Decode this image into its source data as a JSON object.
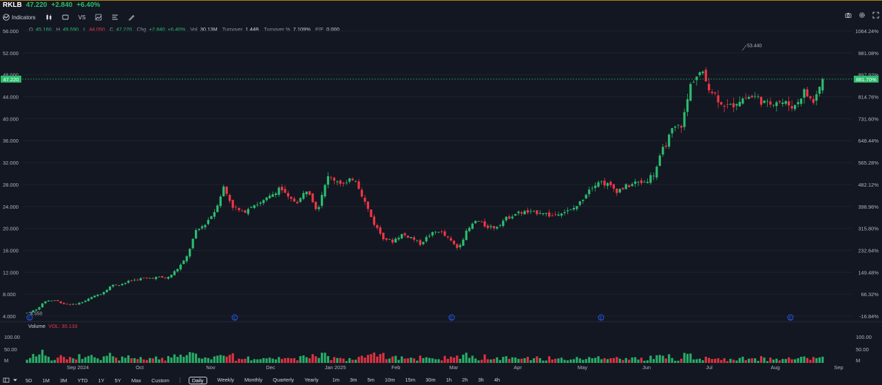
{
  "header": {
    "symbol": "RKLB",
    "price": "47.220",
    "change": "+2.840",
    "change_pct": "+6.40%"
  },
  "toolbar": {
    "indicators_label": "Indicators",
    "compare_label": "VS",
    "left_icons": [
      "candles-icon",
      "rectangle-icon",
      "compare-icon",
      "chart-type-icon",
      "list-icon",
      "pen-icon"
    ],
    "right_icons": [
      "camera-icon",
      "settings-icon",
      "fullscreen-icon"
    ]
  },
  "ohlc": {
    "o_label": "O",
    "o_value": "45.160",
    "h_label": "H",
    "h_value": "49.590",
    "l_label": "L",
    "l_value": "44.050",
    "c_label": "C",
    "c_value": "47.220",
    "chg_label": "Chg",
    "chg_value": "+2.840",
    "chg_pct": "+6.40%",
    "vol_label": "Vol",
    "vol_value": "30.13M",
    "turnover_label": "Turnover",
    "turnover_value": "1.44B",
    "turnover_pct_label": "Turnover %",
    "turnover_pct_value": "7.109%",
    "pe_label": "P/E",
    "pe_value": "0.000"
  },
  "volume_panel": {
    "title": "Volume",
    "vol_text": "VOL: 30.133",
    "left_ticks": [
      "100.00",
      "50.00",
      "M"
    ],
    "right_ticks": [
      "100.00",
      "50.00",
      "M"
    ]
  },
  "timeframes": {
    "ranges": [
      "5D",
      "1M",
      "3M",
      "YTD",
      "1Y",
      "5Y",
      "Max",
      "Custom"
    ],
    "intervals": [
      "Daily",
      "Weekly",
      "Monthly",
      "Quarterly",
      "Yearly",
      "1m",
      "3m",
      "5m",
      "10m",
      "15m",
      "30m",
      "1h",
      "2h",
      "3h",
      "4h"
    ],
    "active": "Daily"
  },
  "colors": {
    "background": "#131722",
    "up": "#2bbd6e",
    "down": "#f23645",
    "grid": "#1e222d",
    "earnings_badge": "#2962ff"
  },
  "chart_data": {
    "type": "candlestick",
    "symbol": "RKLB",
    "y_ticks_left": [
      "56.000",
      "52.000",
      "48.000",
      "44.000",
      "40.000",
      "36.000",
      "32.000",
      "28.000",
      "24.000",
      "20.000",
      "16.000",
      "12.000",
      "8.000",
      "4.000"
    ],
    "y_ticks_right": [
      "1064.24%",
      "981.08%",
      "897.92%",
      "814.76%",
      "731.60%",
      "648.44%",
      "565.28%",
      "482.12%",
      "398.96%",
      "315.80%",
      "232.64%",
      "149.48%",
      "66.32%",
      "-16.84%"
    ],
    "ylim": [
      4.0,
      56.0
    ],
    "x_labels": [
      "Sep 2024",
      "Oct",
      "Nov",
      "Dec",
      "Jan 2025",
      "Feb",
      "Mar",
      "Apr",
      "May",
      "Jun",
      "Jul",
      "Aug",
      "Sep"
    ],
    "current_price_label": "47.220",
    "current_pct_label": "881.70%",
    "current_price": 47.22,
    "high_marker": "53.440",
    "high_value": 53.44,
    "low_marker": "4.550",
    "low_value": 4.55,
    "earnings_badge_text": "E",
    "earnings_months": [
      "Aug 2024",
      "Nov 2024",
      "Feb 2025",
      "May 2025",
      "Aug 2025"
    ],
    "close_path": [
      4.6,
      5.2,
      6.8,
      6.9,
      6.2,
      6.1,
      6.6,
      7.5,
      8.2,
      9.6,
      9.8,
      10.4,
      10.8,
      10.9,
      11.1,
      10.9,
      12.5,
      14.5,
      19.3,
      20.8,
      23.0,
      27.5,
      24.0,
      22.8,
      24.3,
      24.6,
      25.8,
      27.6,
      25.2,
      24.9,
      27.4,
      23.2,
      29.3,
      28.9,
      27.9,
      29.5,
      25.2,
      21.1,
      18.4,
      17.6,
      18.9,
      18.4,
      17.2,
      18.8,
      19.6,
      18.1,
      16.4,
      19.5,
      21.5,
      20.4,
      20.2,
      21.6,
      22.6,
      23.0,
      22.8,
      23.1,
      22.2,
      23.1,
      23.1,
      24.5,
      27.2,
      28.7,
      28.0,
      26.9,
      27.6,
      28.3,
      28.5,
      30.0,
      34.6,
      38.0,
      39.0,
      47.0,
      48.5,
      45.5,
      43.3,
      42.0,
      43.4,
      44.0,
      43.9,
      42.5,
      43.4,
      42.8,
      42.2,
      45.0,
      43.0,
      47.2
    ],
    "volume_ylim": [
      0,
      120
    ]
  }
}
